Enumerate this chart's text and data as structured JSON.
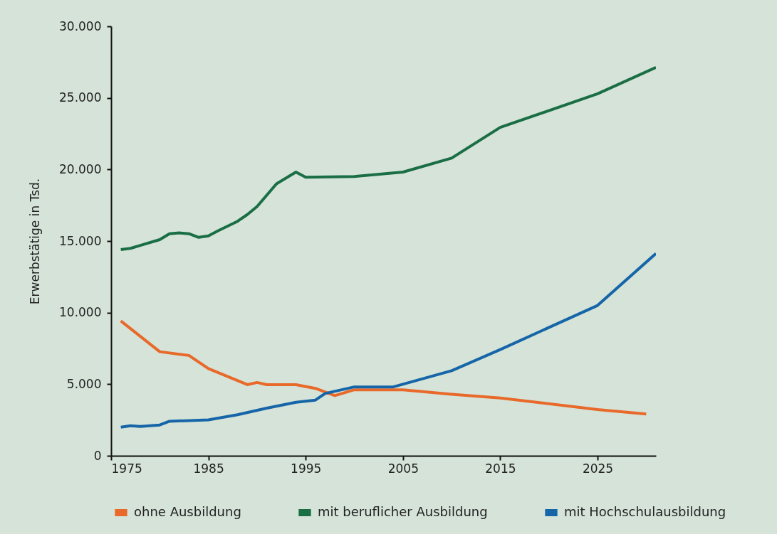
{
  "chart_data": {
    "type": "line",
    "ylabel": "Erwerbstätige in Tsd.",
    "xlim": [
      1975,
      2031
    ],
    "xticks": [
      1975,
      1985,
      1995,
      2005,
      2015,
      2025
    ],
    "ylim": [
      0,
      30000
    ],
    "yticks": [
      0,
      {
        "value": 5000,
        "label": "5.000"
      },
      {
        "value": 10000,
        "label": "10.000"
      },
      {
        "value": 15000,
        "label": "15.000"
      },
      {
        "value": 20000,
        "label": "20.000"
      },
      {
        "value": 25000,
        "label": "25.000"
      },
      {
        "value": 30000,
        "label": "30.000"
      }
    ],
    "grid": false,
    "legend": "bottom",
    "marker": "none",
    "line_style": "solid",
    "series": [
      {
        "name": "ohne Ausbildung",
        "color": "#e8692a",
        "x": [
          1976,
          1980,
          1983,
          1985,
          1989,
          1990,
          1991,
          1994,
          1996,
          1998,
          2000,
          2005,
          2010,
          2015,
          2025,
          2030
        ],
        "values": [
          9420,
          7270,
          7010,
          6090,
          4970,
          5120,
          4970,
          4970,
          4710,
          4200,
          4610,
          4610,
          4300,
          4040,
          3230,
          2920
        ]
      },
      {
        "name": "mit beruflicher Ausbildung",
        "color": "#1a6e45",
        "x": [
          1976,
          1977,
          1978,
          1980,
          1981,
          1982,
          1983,
          1984,
          1985,
          1986,
          1988,
          1989,
          1990,
          1992,
          1994,
          1995,
          2000,
          2005,
          2010,
          2015,
          2025,
          2031
        ],
        "values": [
          14400,
          14490,
          14700,
          15100,
          15510,
          15570,
          15510,
          15260,
          15360,
          15720,
          16380,
          16850,
          17410,
          19000,
          19820,
          19460,
          19510,
          19820,
          20790,
          22940,
          25290,
          27130
        ]
      },
      {
        "name": "mit Hochschulausbildung",
        "color": "#1565a8",
        "x": [
          1976,
          1977,
          1978,
          1980,
          1981,
          1985,
          1988,
          1991,
          1994,
          1996,
          1997,
          2000,
          2004,
          2010,
          2015,
          2025,
          2031
        ],
        "values": [
          2000,
          2100,
          2050,
          2150,
          2410,
          2510,
          2870,
          3330,
          3740,
          3890,
          4350,
          4810,
          4810,
          5940,
          7420,
          10500,
          14130
        ]
      }
    ]
  }
}
